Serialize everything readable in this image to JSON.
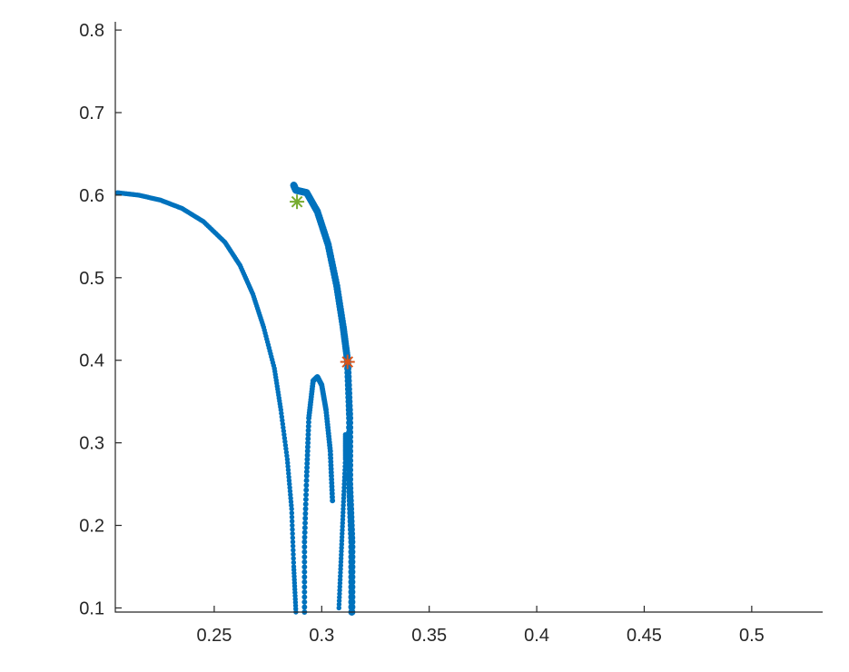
{
  "chart_data": {
    "type": "scatter",
    "title": "",
    "xlabel": "",
    "ylabel": "",
    "xlim": [
      0.204,
      0.533
    ],
    "ylim": [
      0.095,
      0.81
    ],
    "xticks": [
      0.25,
      0.3,
      0.35,
      0.4,
      0.45,
      0.5
    ],
    "xtick_labels": [
      "0.25",
      "0.3",
      "0.35",
      "0.4",
      "0.45",
      "0.5"
    ],
    "yticks": [
      0.1,
      0.2,
      0.3,
      0.4,
      0.5,
      0.6,
      0.7,
      0.8
    ],
    "ytick_labels": [
      "0.1",
      "0.2",
      "0.3",
      "0.4",
      "0.5",
      "0.6",
      "0.7",
      "0.8"
    ],
    "grid": false,
    "legend": "none",
    "series": [
      {
        "color": "#0072BD",
        "marker": "dot",
        "curves": [
          [
            [
              0.205,
              0.603
            ],
            [
              0.215,
              0.6
            ],
            [
              0.225,
              0.594
            ],
            [
              0.235,
              0.584
            ],
            [
              0.245,
              0.568
            ],
            [
              0.255,
              0.543
            ],
            [
              0.262,
              0.515
            ],
            [
              0.268,
              0.48
            ],
            [
              0.273,
              0.44
            ],
            [
              0.278,
              0.39
            ],
            [
              0.281,
              0.34
            ],
            [
              0.284,
              0.28
            ],
            [
              0.286,
              0.22
            ],
            [
              0.287,
              0.15
            ],
            [
              0.288,
              0.095
            ]
          ],
          [
            [
              0.292,
              0.095
            ],
            [
              0.292,
              0.18
            ],
            [
              0.293,
              0.26
            ],
            [
              0.294,
              0.33
            ],
            [
              0.296,
              0.375
            ],
            [
              0.298,
              0.38
            ],
            [
              0.3,
              0.37
            ],
            [
              0.302,
              0.34
            ],
            [
              0.304,
              0.29
            ],
            [
              0.305,
              0.23
            ]
          ],
          [
            [
              0.308,
              0.1
            ],
            [
              0.309,
              0.16
            ],
            [
              0.31,
              0.22
            ],
            [
              0.311,
              0.28
            ],
            [
              0.311,
              0.31
            ]
          ],
          [
            [
              0.287,
              0.612
            ],
            [
              0.288,
              0.606
            ],
            [
              0.293,
              0.603
            ],
            [
              0.298,
              0.58
            ],
            [
              0.303,
              0.54
            ],
            [
              0.307,
              0.49
            ],
            [
              0.31,
              0.44
            ],
            [
              0.312,
              0.4
            ],
            [
              0.313,
              0.33
            ],
            [
              0.313,
              0.25
            ],
            [
              0.314,
              0.18
            ],
            [
              0.314,
              0.095
            ]
          ]
        ],
        "widths": [
          3.0,
          3.5,
          3.0,
          5.5
        ]
      },
      {
        "color": "#77AC30",
        "marker": "star",
        "points": [
          [
            0.2885,
            0.592
          ]
        ]
      },
      {
        "color": "#D95319",
        "marker": "star",
        "points": [
          [
            0.312,
            0.398
          ]
        ]
      }
    ]
  }
}
